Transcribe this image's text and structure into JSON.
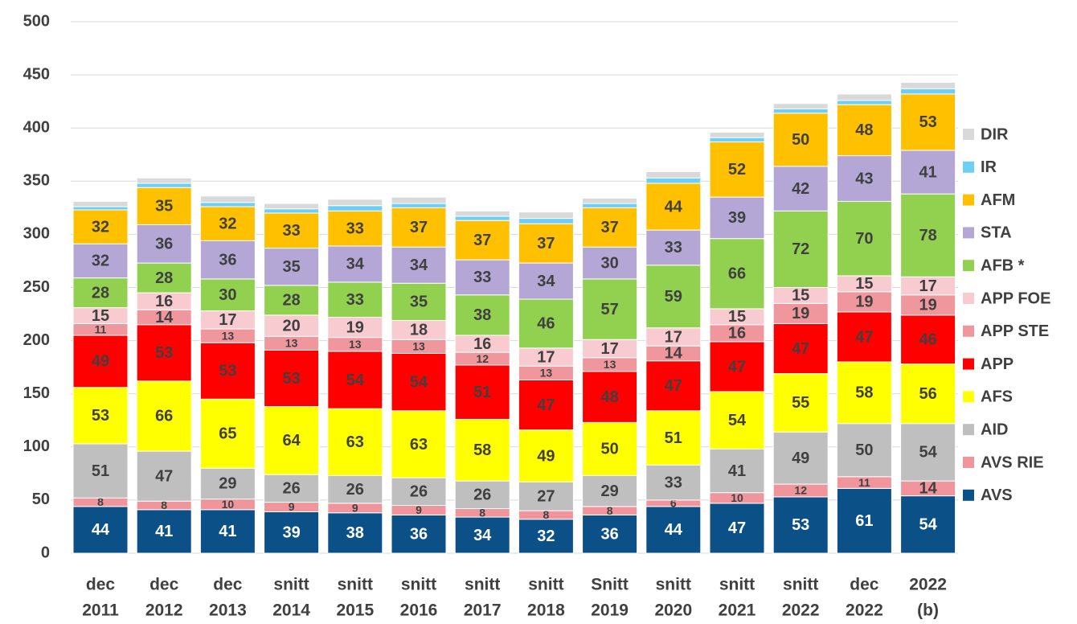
{
  "chart_data": {
    "type": "stacked_bar",
    "categories": [
      [
        "dec",
        "2011"
      ],
      [
        "dec",
        "2012"
      ],
      [
        "dec",
        "2013"
      ],
      [
        "snitt",
        "2014"
      ],
      [
        "snitt",
        "2015"
      ],
      [
        "snitt",
        "2016"
      ],
      [
        "snitt",
        "2017"
      ],
      [
        "snitt",
        "2018"
      ],
      [
        "Snitt",
        "2019"
      ],
      [
        "snitt",
        "2020"
      ],
      [
        "snitt",
        "2021"
      ],
      [
        "snitt",
        "2022"
      ],
      [
        "dec",
        "2022"
      ],
      [
        "2022",
        "(b)"
      ]
    ],
    "series": [
      {
        "name": "AVS",
        "color": "#0b5087",
        "label_color": "#ffffff",
        "show_labels": true,
        "values": [
          44,
          41,
          41,
          39,
          38,
          36,
          34,
          32,
          36,
          44,
          47,
          53,
          61,
          54
        ]
      },
      {
        "name": "AVS RIE",
        "color": "#ef959b",
        "label_color": "#404040",
        "show_labels": true,
        "values": [
          8,
          8,
          10,
          9,
          9,
          9,
          8,
          8,
          8,
          6,
          10,
          12,
          11,
          14
        ]
      },
      {
        "name": "AID",
        "color": "#bfbfbf",
        "label_color": "#404040",
        "show_labels": true,
        "values": [
          51,
          47,
          29,
          26,
          26,
          26,
          26,
          27,
          29,
          33,
          41,
          49,
          50,
          54
        ]
      },
      {
        "name": "AFS",
        "color": "#ffff00",
        "label_color": "#404040",
        "show_labels": true,
        "values": [
          53,
          66,
          65,
          64,
          63,
          63,
          58,
          49,
          50,
          51,
          54,
          55,
          58,
          56
        ]
      },
      {
        "name": "APP",
        "color": "#ff0000",
        "label_color": "#404040",
        "show_labels": true,
        "values": [
          49,
          53,
          53,
          53,
          54,
          54,
          51,
          47,
          48,
          47,
          47,
          47,
          47,
          46
        ]
      },
      {
        "name": "APP STE",
        "color": "#f0979d",
        "label_color": "#404040",
        "show_labels": true,
        "values": [
          11,
          14,
          13,
          13,
          13,
          13,
          12,
          13,
          13,
          14,
          16,
          19,
          19,
          19
        ]
      },
      {
        "name": "APP FOE",
        "color": "#f8cbd0",
        "label_color": "#404040",
        "show_labels": true,
        "values": [
          15,
          16,
          17,
          20,
          19,
          18,
          16,
          17,
          17,
          17,
          15,
          15,
          15,
          17
        ]
      },
      {
        "name": "AFB *",
        "color": "#92d050",
        "label_color": "#404040",
        "show_labels": true,
        "values": [
          28,
          28,
          30,
          28,
          33,
          35,
          38,
          46,
          57,
          59,
          66,
          72,
          70,
          78
        ]
      },
      {
        "name": "STA",
        "color": "#b4a7d6",
        "label_color": "#404040",
        "show_labels": true,
        "values": [
          32,
          36,
          36,
          35,
          34,
          34,
          33,
          34,
          30,
          33,
          39,
          42,
          43,
          41
        ]
      },
      {
        "name": "AFM",
        "color": "#ffc000",
        "label_color": "#404040",
        "show_labels": true,
        "values": [
          32,
          35,
          32,
          33,
          33,
          37,
          37,
          37,
          37,
          44,
          52,
          50,
          48,
          53
        ]
      },
      {
        "name": "IR",
        "color": "#6ecff6",
        "label_color": "#404040",
        "show_labels": false,
        "values": [
          3,
          4,
          4,
          4,
          5,
          4,
          4,
          5,
          4,
          5,
          4,
          4,
          4,
          5
        ]
      },
      {
        "name": "DIR",
        "color": "#d9d9d9",
        "label_color": "#404040",
        "show_labels": false,
        "values": [
          5,
          5,
          6,
          5,
          6,
          6,
          5,
          6,
          5,
          6,
          5,
          5,
          6,
          6
        ]
      }
    ],
    "ylim": [
      0,
      500
    ],
    "yticks": [
      0,
      50,
      100,
      150,
      200,
      250,
      300,
      350,
      400,
      450,
      500
    ],
    "grid": true,
    "legend": "right"
  }
}
